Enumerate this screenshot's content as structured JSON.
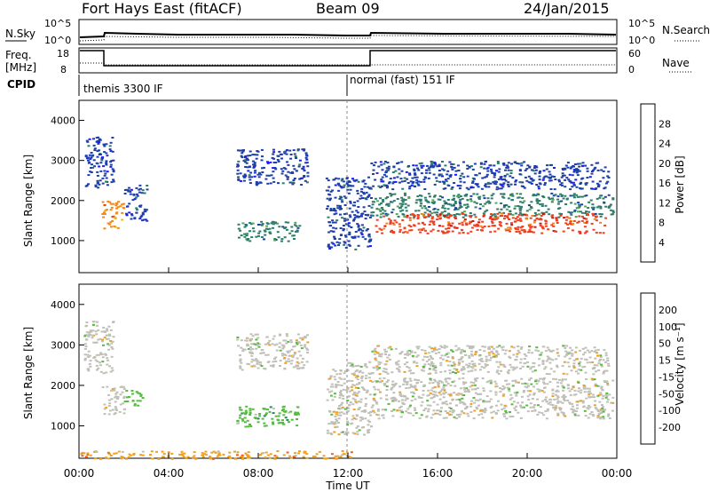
{
  "header": {
    "station": "Fort Hays East (fitACF)",
    "beam": "Beam 09",
    "date": "24/Jan/2015"
  },
  "top_panels": {
    "nsky_label": "N.Sky",
    "nsky_ticks": [
      "10^5",
      "10^0"
    ],
    "nsearch_label": "N.Search",
    "nsearch_ticks": [
      "10^5",
      "10^0"
    ],
    "freq_label_1": "Freq.",
    "freq_label_2": "[MHz]",
    "freq_ticks": [
      "18",
      "8"
    ],
    "nave_label": "Nave",
    "nave_ticks": [
      "60",
      "0"
    ],
    "cpid_label": "CPID",
    "cpid_modes": [
      "themis 3300 IF",
      "normal (fast) 151 IF"
    ]
  },
  "chart_data": [
    {
      "type": "heatmap",
      "name": "Power",
      "ylabel": "Slant Range [km]",
      "yticks": [
        "1000",
        "2000",
        "3000",
        "4000"
      ],
      "ylim": [
        200,
        4500
      ],
      "xlim_hours": [
        0,
        24
      ],
      "colorbar_label": "Power [dB]",
      "colorbar_ticks": [
        "4",
        "8",
        "12",
        "16",
        "20",
        "24",
        "28"
      ],
      "colors": [
        "#1a1aff",
        "#1f3fa8",
        "#2e7d6a",
        "#55a855",
        "#e0c020",
        "#f08a20",
        "#f04020",
        "#d01010"
      ],
      "regions": [
        {
          "t0": 0.2,
          "t1": 1.5,
          "r0": 2300,
          "r1": 3600,
          "level": 1
        },
        {
          "t0": 1.0,
          "t1": 2.0,
          "r0": 1300,
          "r1": 2000,
          "level": 5
        },
        {
          "t0": 2.0,
          "t1": 3.0,
          "r0": 1500,
          "r1": 2400,
          "level": 1
        },
        {
          "t0": 7.0,
          "t1": 10.2,
          "r0": 2400,
          "r1": 3300,
          "level": 1
        },
        {
          "t0": 7.0,
          "t1": 9.8,
          "r0": 1000,
          "r1": 1500,
          "level": 2
        },
        {
          "t0": 11.0,
          "t1": 13.0,
          "r0": 800,
          "r1": 2600,
          "level": 1
        },
        {
          "t0": 13.0,
          "t1": 23.6,
          "r0": 2300,
          "r1": 3000,
          "level": 1
        },
        {
          "t0": 13.0,
          "t1": 23.8,
          "r0": 1600,
          "r1": 2200,
          "level": 2
        },
        {
          "t0": 13.2,
          "t1": 23.5,
          "r0": 1200,
          "r1": 1700,
          "level": 6
        }
      ]
    },
    {
      "type": "heatmap",
      "name": "Velocity",
      "ylabel": "Slant Range [km]",
      "yticks": [
        "1000",
        "2000",
        "3000",
        "4000"
      ],
      "ylim": [
        200,
        4500
      ],
      "xlim_hours": [
        0,
        24
      ],
      "xticks": [
        "00:00",
        "04:00",
        "08:00",
        "12:00",
        "16:00",
        "20:00",
        "00:00"
      ],
      "xlabel": "Time UT",
      "colorbar_label": "Velocity [m s⁻¹]",
      "colorbar_ticks": [
        "200",
        "100",
        "50",
        "15",
        "-15",
        "-50",
        "-100",
        "-200"
      ],
      "colors": [
        "#1a1aff",
        "#2050a0",
        "#2e8060",
        "#55bb40",
        "#c0c0b8",
        "#f0a020",
        "#f06020",
        "#e01010",
        "#d00000"
      ],
      "regions": [
        {
          "t0": 0.2,
          "t1": 1.5,
          "r0": 2300,
          "r1": 3600,
          "level": 4
        },
        {
          "t0": 1.0,
          "t1": 2.0,
          "r0": 1300,
          "r1": 2000,
          "level": 4
        },
        {
          "t0": 2.0,
          "t1": 2.8,
          "r0": 1500,
          "r1": 1900,
          "level": 3
        },
        {
          "t0": 7.0,
          "t1": 10.2,
          "r0": 2400,
          "r1": 3300,
          "level": 4
        },
        {
          "t0": 7.0,
          "t1": 9.8,
          "r0": 1000,
          "r1": 1500,
          "level": 3
        },
        {
          "t0": 11.0,
          "t1": 13.0,
          "r0": 800,
          "r1": 2600,
          "level": 4
        },
        {
          "t0": 13.0,
          "t1": 23.6,
          "r0": 2300,
          "r1": 3000,
          "level": 4
        },
        {
          "t0": 13.0,
          "t1": 23.8,
          "r0": 1200,
          "r1": 2200,
          "level": 4
        },
        {
          "t0": 0.0,
          "t1": 12.5,
          "r0": 200,
          "r1": 400,
          "level": 5
        }
      ]
    }
  ]
}
